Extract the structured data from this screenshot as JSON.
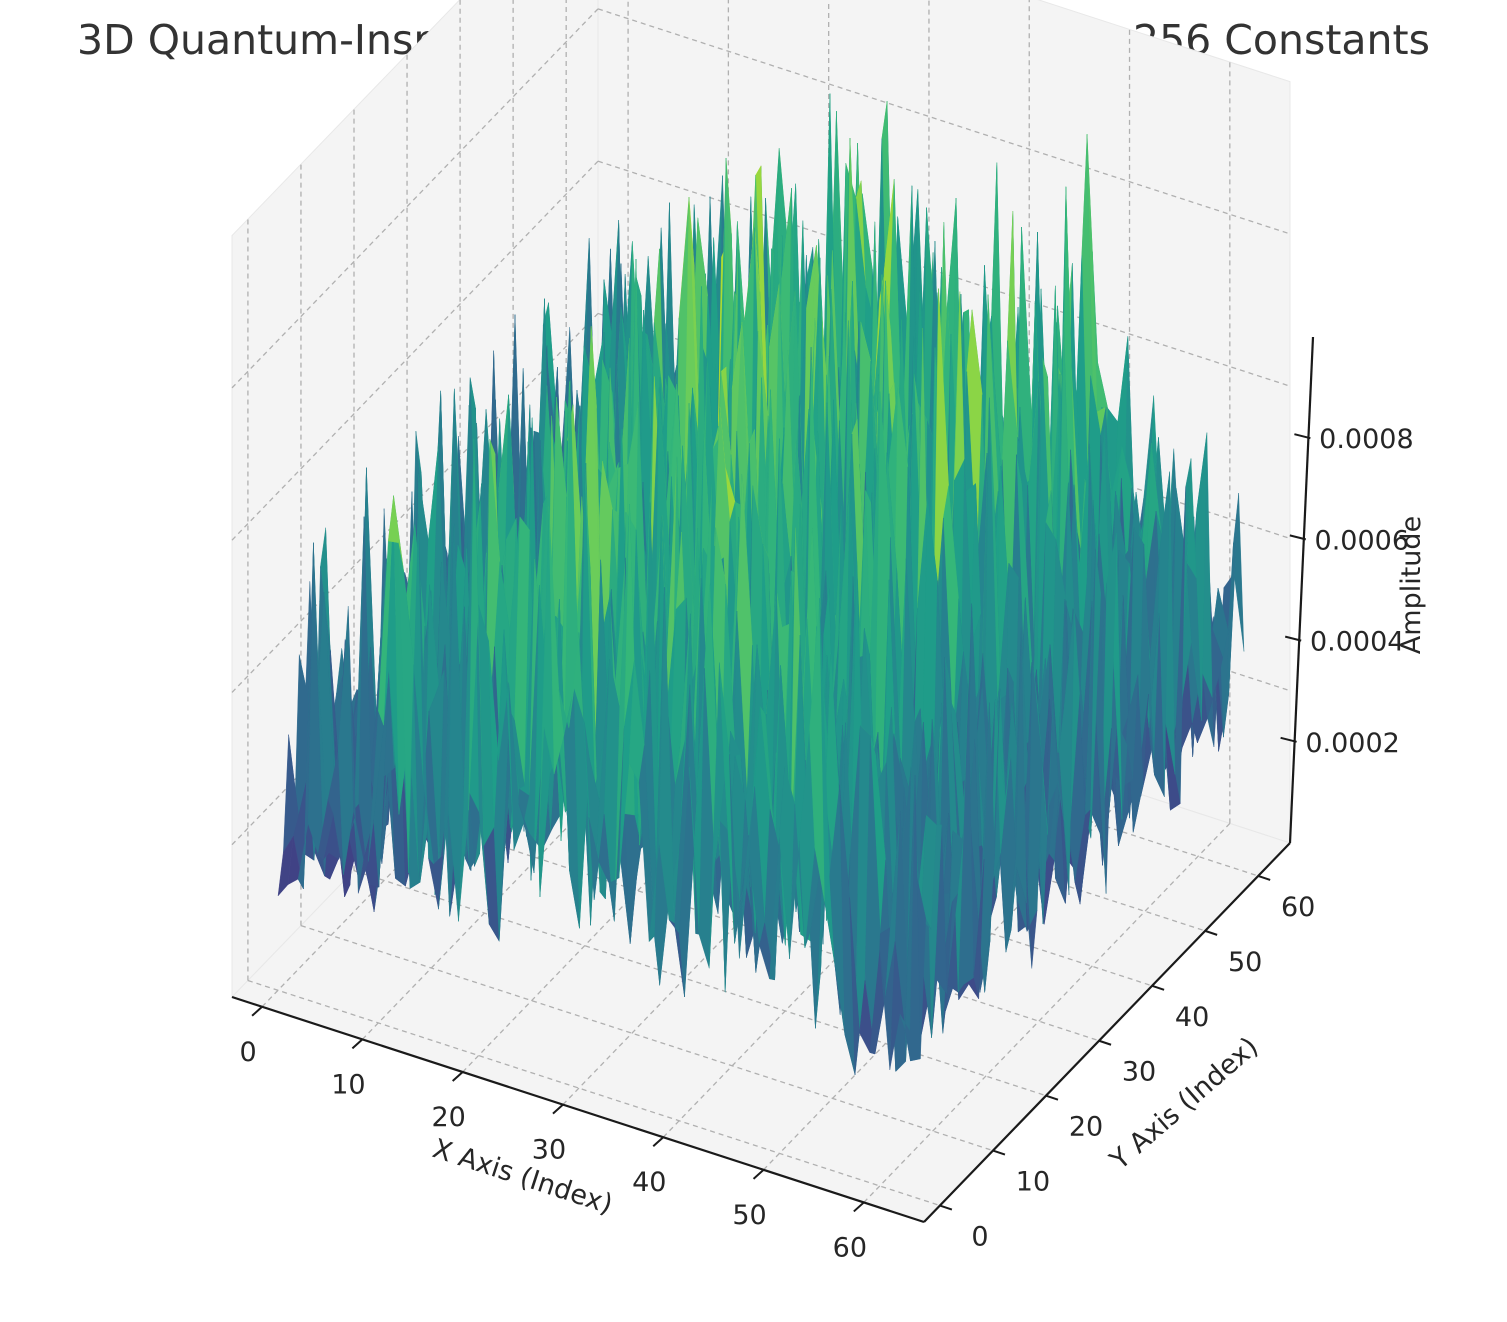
{
  "chart_data": {
    "type": "surface3d",
    "title": "3D Quantum-Inspired Waveform Derived from SHA-256 Constants",
    "xlabel": "X Axis (Index)",
    "ylabel": "Y Axis (Index)",
    "zlabel": "Amplitude",
    "colormap": "viridis",
    "xlim": [
      -3,
      66
    ],
    "ylim": [
      -3,
      66
    ],
    "zlim": [
      0,
      0.001
    ],
    "x_ticks": [
      "0",
      "10",
      "20",
      "30",
      "40",
      "50",
      "60"
    ],
    "y_ticks": [
      "0",
      "10",
      "20",
      "30",
      "40",
      "50",
      "60"
    ],
    "z_ticks": [
      "0.0002",
      "0.0004",
      "0.0006",
      "0.0008"
    ],
    "grid": true,
    "grid_size": [
      64,
      64
    ],
    "z_min": 0.0,
    "z_max": 0.00093,
    "x_spike_profile": [
      0.00055,
      0.0004,
      0.00035,
      0.00062,
      0.0003,
      0.00058,
      0.0005,
      0.00068,
      0.00035,
      0.00045,
      0.00052,
      0.0007,
      0.00065,
      0.0006,
      0.00072,
      0.00048,
      0.00058,
      0.00075,
      0.00066,
      0.0008,
      0.00062,
      0.00055,
      0.00078,
      0.0009,
      0.0007,
      0.00085,
      0.00072,
      0.00095,
      0.0008,
      0.00088,
      0.0006,
      0.00075,
      0.00082,
      0.00068,
      0.00078,
      0.00086,
      0.0007,
      0.00065,
      0.0008,
      0.00072,
      0.00062,
      0.00085,
      0.0007,
      0.0006,
      0.00078,
      0.00055,
      0.00068,
      0.0008,
      0.00074,
      0.00062,
      0.00092,
      0.00068,
      0.00058,
      0.00066,
      0.00078,
      0.0006,
      0.00052,
      0.00064,
      0.00058,
      0.0005,
      0.00048,
      0.00056,
      0.00052,
      0.0006
    ]
  }
}
